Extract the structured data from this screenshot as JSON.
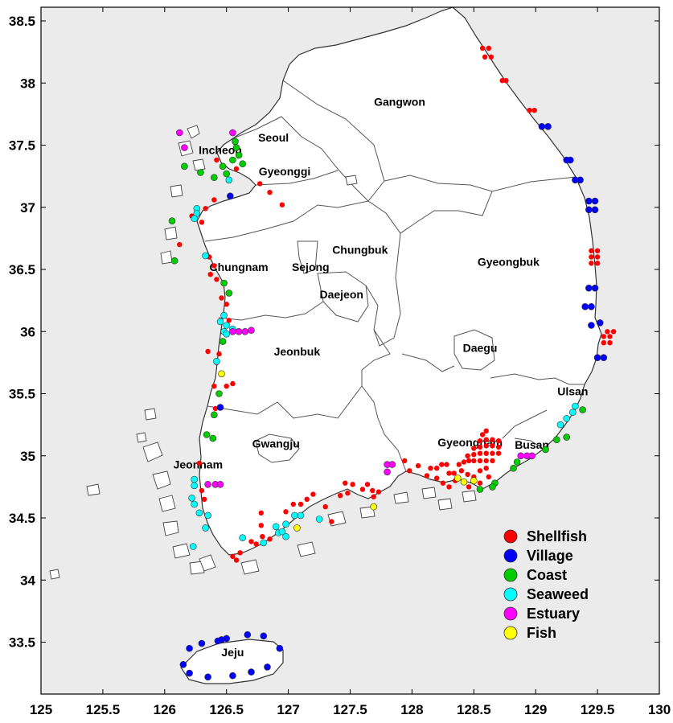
{
  "map": {
    "x_ticks": [
      "125",
      "125.5",
      "126",
      "126.5",
      "127",
      "127.5",
      "128",
      "128.5",
      "129",
      "129.5",
      "130"
    ],
    "y_ticks": [
      "38.5",
      "38",
      "37.5",
      "37",
      "36.5",
      "36",
      "35.5",
      "35",
      "34.5",
      "34",
      "33.5"
    ],
    "lon_range": [
      125,
      130
    ],
    "lat_range": [
      33.1,
      38.6
    ],
    "background_color": "#ebebeb",
    "land_color": "#ffffff"
  },
  "regions": [
    {
      "name": "Gangwon",
      "lon": 127.9,
      "lat": 37.85
    },
    {
      "name": "Seoul",
      "lon": 126.88,
      "lat": 37.56
    },
    {
      "name": "Incheon",
      "lon": 126.45,
      "lat": 37.46
    },
    {
      "name": "Gyeonggi",
      "lon": 126.97,
      "lat": 37.29
    },
    {
      "name": "Chungbuk",
      "lon": 127.58,
      "lat": 36.66
    },
    {
      "name": "Sejong",
      "lon": 127.18,
      "lat": 36.52
    },
    {
      "name": "Chungnam",
      "lon": 126.6,
      "lat": 36.52
    },
    {
      "name": "Daejeon",
      "lon": 127.43,
      "lat": 36.3
    },
    {
      "name": "Gyeongbuk",
      "lon": 128.78,
      "lat": 36.56
    },
    {
      "name": "Jeonbuk",
      "lon": 127.07,
      "lat": 35.84
    },
    {
      "name": "Daegu",
      "lon": 128.55,
      "lat": 35.87
    },
    {
      "name": "Ulsan",
      "lon": 129.3,
      "lat": 35.52
    },
    {
      "name": "Gwangju",
      "lon": 126.9,
      "lat": 35.1
    },
    {
      "name": "Gyeongnam",
      "lon": 128.47,
      "lat": 35.11
    },
    {
      "name": "Busan",
      "lon": 128.97,
      "lat": 35.09
    },
    {
      "name": "Jeonnam",
      "lon": 126.27,
      "lat": 34.93
    },
    {
      "name": "Jeju",
      "lon": 126.55,
      "lat": 33.42
    }
  ],
  "legend": [
    {
      "key": "shellfish",
      "label": "Shellfish",
      "color": "#ff0000"
    },
    {
      "key": "village",
      "label": "Village",
      "color": "#0000ff"
    },
    {
      "key": "coast",
      "label": "Coast",
      "color": "#00cc00"
    },
    {
      "key": "seaweed",
      "label": "Seaweed",
      "color": "#00ffff"
    },
    {
      "key": "estuary",
      "label": "Estuary",
      "color": "#ff00ff"
    },
    {
      "key": "fish",
      "label": "Fish",
      "color": "#ffff00"
    }
  ],
  "sites": {
    "shellfish": [
      [
        128.57,
        38.28
      ],
      [
        128.62,
        38.28
      ],
      [
        128.59,
        38.21
      ],
      [
        128.64,
        38.21
      ],
      [
        128.73,
        38.02
      ],
      [
        128.76,
        38.02
      ],
      [
        128.95,
        37.78
      ],
      [
        128.99,
        37.78
      ],
      [
        129.45,
        36.65
      ],
      [
        129.5,
        36.65
      ],
      [
        129.45,
        36.6
      ],
      [
        129.5,
        36.6
      ],
      [
        129.45,
        36.55
      ],
      [
        129.5,
        36.55
      ],
      [
        129.58,
        36.0
      ],
      [
        129.63,
        36.0
      ],
      [
        129.55,
        35.96
      ],
      [
        129.6,
        35.96
      ],
      [
        129.55,
        35.91
      ],
      [
        129.6,
        35.91
      ],
      [
        126.42,
        37.38
      ],
      [
        126.58,
        37.31
      ],
      [
        126.77,
        37.19
      ],
      [
        126.85,
        37.12
      ],
      [
        126.95,
        37.02
      ],
      [
        126.4,
        37.06
      ],
      [
        126.33,
        36.99
      ],
      [
        126.22,
        36.93
      ],
      [
        126.3,
        36.88
      ],
      [
        126.12,
        36.7
      ],
      [
        126.36,
        36.6
      ],
      [
        126.4,
        36.53
      ],
      [
        126.37,
        36.46
      ],
      [
        126.42,
        36.42
      ],
      [
        126.46,
        36.27
      ],
      [
        126.5,
        36.22
      ],
      [
        126.52,
        36.09
      ],
      [
        126.35,
        35.84
      ],
      [
        126.44,
        35.82
      ],
      [
        126.42,
        35.75
      ],
      [
        126.4,
        35.56
      ],
      [
        126.5,
        35.56
      ],
      [
        126.55,
        35.58
      ],
      [
        126.41,
        35.38
      ],
      [
        126.28,
        34.94
      ],
      [
        126.3,
        34.72
      ],
      [
        126.32,
        34.65
      ],
      [
        126.55,
        34.19
      ],
      [
        126.61,
        34.22
      ],
      [
        126.58,
        34.16
      ],
      [
        126.7,
        34.31
      ],
      [
        126.74,
        34.29
      ],
      [
        126.79,
        34.35
      ],
      [
        126.78,
        34.44
      ],
      [
        126.78,
        34.54
      ],
      [
        126.85,
        34.33
      ],
      [
        126.98,
        34.55
      ],
      [
        127.04,
        34.61
      ],
      [
        127.1,
        34.61
      ],
      [
        127.15,
        34.65
      ],
      [
        127.2,
        34.69
      ],
      [
        127.3,
        34.59
      ],
      [
        127.35,
        34.47
      ],
      [
        127.42,
        34.68
      ],
      [
        127.46,
        34.78
      ],
      [
        127.52,
        34.77
      ],
      [
        127.48,
        34.7
      ],
      [
        127.6,
        34.73
      ],
      [
        127.64,
        34.77
      ],
      [
        127.68,
        34.72
      ],
      [
        127.73,
        34.71
      ],
      [
        127.69,
        34.67
      ],
      [
        127.94,
        34.96
      ],
      [
        127.98,
        34.88
      ],
      [
        128.05,
        34.92
      ],
      [
        128.12,
        34.84
      ],
      [
        128.15,
        34.9
      ],
      [
        128.2,
        34.9
      ],
      [
        128.24,
        34.93
      ],
      [
        128.28,
        34.93
      ],
      [
        128.3,
        34.86
      ],
      [
        128.34,
        34.86
      ],
      [
        128.38,
        34.93
      ],
      [
        128.42,
        34.95
      ],
      [
        128.46,
        34.96
      ],
      [
        128.5,
        34.96
      ],
      [
        128.55,
        34.96
      ],
      [
        128.6,
        34.96
      ],
      [
        128.65,
        34.96
      ],
      [
        128.45,
        35.0
      ],
      [
        128.5,
        35.01
      ],
      [
        128.55,
        35.02
      ],
      [
        128.6,
        35.02
      ],
      [
        128.65,
        35.02
      ],
      [
        128.7,
        35.02
      ],
      [
        128.5,
        35.06
      ],
      [
        128.55,
        35.07
      ],
      [
        128.6,
        35.08
      ],
      [
        128.65,
        35.08
      ],
      [
        128.7,
        35.07
      ],
      [
        128.55,
        35.12
      ],
      [
        128.6,
        35.13
      ],
      [
        128.65,
        35.13
      ],
      [
        128.57,
        35.17
      ],
      [
        128.6,
        35.2
      ],
      [
        128.7,
        35.12
      ],
      [
        128.4,
        34.88
      ],
      [
        128.45,
        34.85
      ],
      [
        128.5,
        34.83
      ],
      [
        128.55,
        34.88
      ],
      [
        128.6,
        34.9
      ],
      [
        128.62,
        34.83
      ],
      [
        128.35,
        34.8
      ],
      [
        128.3,
        34.75
      ],
      [
        128.25,
        34.78
      ],
      [
        128.2,
        34.82
      ],
      [
        128.46,
        34.75
      ],
      [
        128.55,
        34.78
      ]
    ],
    "village": [
      [
        129.05,
        37.65
      ],
      [
        129.1,
        37.65
      ],
      [
        129.25,
        37.38
      ],
      [
        129.28,
        37.38
      ],
      [
        129.32,
        37.22
      ],
      [
        129.36,
        37.22
      ],
      [
        129.43,
        37.05
      ],
      [
        129.48,
        37.05
      ],
      [
        129.43,
        36.98
      ],
      [
        129.48,
        36.98
      ],
      [
        129.43,
        36.35
      ],
      [
        129.48,
        36.35
      ],
      [
        129.4,
        36.2
      ],
      [
        129.45,
        36.2
      ],
      [
        129.45,
        36.05
      ],
      [
        129.52,
        36.07
      ],
      [
        129.5,
        35.79
      ],
      [
        129.55,
        35.79
      ],
      [
        126.53,
        37.09
      ],
      [
        126.45,
        35.39
      ],
      [
        126.2,
        33.45
      ],
      [
        126.3,
        33.49
      ],
      [
        126.43,
        33.51
      ],
      [
        126.46,
        33.52
      ],
      [
        126.5,
        33.53
      ],
      [
        126.67,
        33.56
      ],
      [
        126.8,
        33.55
      ],
      [
        126.93,
        33.45
      ],
      [
        126.83,
        33.3
      ],
      [
        126.7,
        33.26
      ],
      [
        126.55,
        33.23
      ],
      [
        126.35,
        33.22
      ],
      [
        126.2,
        33.25
      ],
      [
        126.15,
        33.32
      ]
    ],
    "coast": [
      [
        126.57,
        37.53
      ],
      [
        126.58,
        37.48
      ],
      [
        126.6,
        37.42
      ],
      [
        126.55,
        37.38
      ],
      [
        126.63,
        37.35
      ],
      [
        126.47,
        37.33
      ],
      [
        126.5,
        37.27
      ],
      [
        126.16,
        37.33
      ],
      [
        126.29,
        37.28
      ],
      [
        126.4,
        37.24
      ],
      [
        126.06,
        36.89
      ],
      [
        126.08,
        36.57
      ],
      [
        126.48,
        36.39
      ],
      [
        126.52,
        36.31
      ],
      [
        126.47,
        35.92
      ],
      [
        126.44,
        35.5
      ],
      [
        126.4,
        35.33
      ],
      [
        126.34,
        35.17
      ],
      [
        126.39,
        35.14
      ],
      [
        128.82,
        34.9
      ],
      [
        128.85,
        34.95
      ],
      [
        128.67,
        34.78
      ],
      [
        128.65,
        34.75
      ],
      [
        128.55,
        34.73
      ],
      [
        129.17,
        35.13
      ],
      [
        129.25,
        35.15
      ],
      [
        129.38,
        35.37
      ],
      [
        129.08,
        35.05
      ]
    ],
    "seaweed": [
      [
        126.52,
        37.22
      ],
      [
        126.26,
        36.99
      ],
      [
        126.26,
        36.95
      ],
      [
        126.24,
        36.91
      ],
      [
        126.33,
        36.61
      ],
      [
        126.48,
        36.13
      ],
      [
        126.45,
        36.08
      ],
      [
        126.5,
        36.05
      ],
      [
        126.48,
        36.0
      ],
      [
        126.5,
        35.98
      ],
      [
        126.55,
        36.02
      ],
      [
        126.42,
        35.76
      ],
      [
        126.24,
        34.81
      ],
      [
        126.24,
        34.76
      ],
      [
        126.22,
        34.66
      ],
      [
        126.24,
        34.61
      ],
      [
        126.28,
        34.54
      ],
      [
        126.35,
        34.52
      ],
      [
        126.33,
        34.42
      ],
      [
        126.23,
        34.27
      ],
      [
        126.63,
        34.34
      ],
      [
        126.8,
        34.3
      ],
      [
        126.9,
        34.43
      ],
      [
        126.98,
        34.45
      ],
      [
        126.92,
        34.38
      ],
      [
        126.98,
        34.35
      ],
      [
        127.05,
        34.52
      ],
      [
        127.1,
        34.52
      ],
      [
        127.25,
        34.49
      ],
      [
        126.95,
        34.39
      ],
      [
        129.2,
        35.25
      ],
      [
        129.25,
        35.3
      ],
      [
        129.3,
        35.35
      ],
      [
        129.32,
        35.4
      ]
    ],
    "estuary": [
      [
        126.12,
        37.6
      ],
      [
        126.55,
        37.6
      ],
      [
        126.16,
        37.48
      ],
      [
        126.55,
        36.0
      ],
      [
        126.6,
        36.0
      ],
      [
        126.65,
        36.0
      ],
      [
        126.7,
        36.01
      ],
      [
        126.35,
        34.77
      ],
      [
        126.41,
        34.77
      ],
      [
        126.45,
        34.77
      ],
      [
        127.8,
        34.87
      ],
      [
        127.8,
        34.93
      ],
      [
        127.84,
        34.93
      ],
      [
        128.88,
        35.0
      ],
      [
        128.93,
        35.0
      ],
      [
        128.97,
        35.0
      ]
    ],
    "fish": [
      [
        126.46,
        35.66
      ],
      [
        127.07,
        34.42
      ],
      [
        127.69,
        34.59
      ],
      [
        128.37,
        34.82
      ],
      [
        128.42,
        34.79
      ],
      [
        128.5,
        34.8
      ]
    ]
  }
}
